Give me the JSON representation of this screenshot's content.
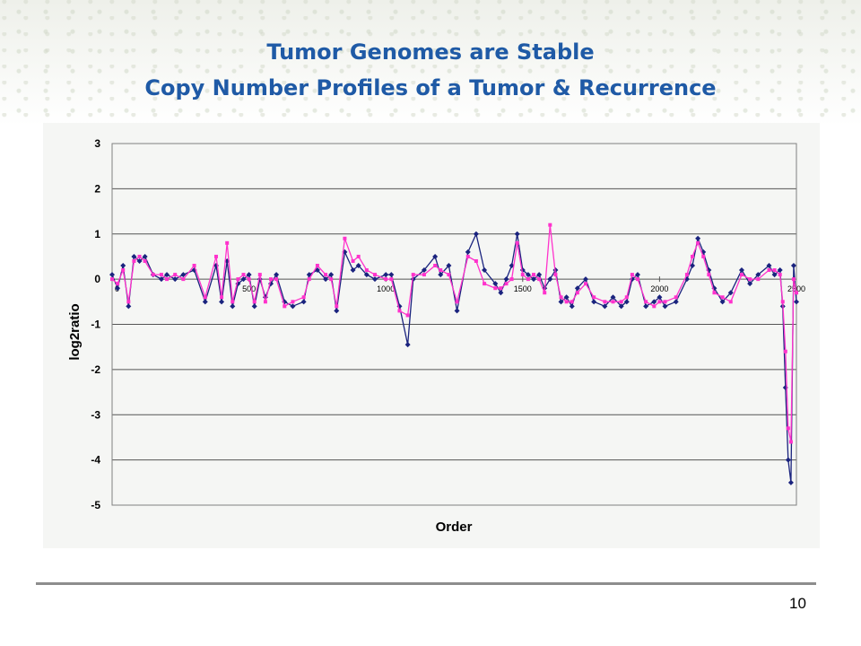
{
  "slide": {
    "title_line1": "Tumor Genomes are Stable",
    "title_line2": "Copy Number Profiles of a Tumor & Recurrence",
    "page_number": "10"
  },
  "colors": {
    "title": "#1f5aa6",
    "series_tumor": "#1a237e",
    "series_recurrence": "#ff33cc"
  },
  "chart_data": {
    "type": "line",
    "xlabel": "Order",
    "ylabel": "log2ratio",
    "xlim": [
      0,
      2500
    ],
    "ylim": [
      -5,
      3
    ],
    "yticks": [
      "3",
      "2",
      "1",
      "0",
      "-1",
      "-2",
      "-3",
      "-4",
      "-5"
    ],
    "xticks": [
      "0",
      "500",
      "1000",
      "1500",
      "2000",
      "2500"
    ],
    "grid": true,
    "legend": "none",
    "series": [
      {
        "color": "#1a237e",
        "marker": "diamond",
        "x": [
          0,
          20,
          40,
          60,
          80,
          100,
          120,
          150,
          180,
          200,
          230,
          260,
          300,
          340,
          380,
          400,
          420,
          440,
          460,
          480,
          500,
          520,
          540,
          560,
          580,
          600,
          630,
          660,
          700,
          720,
          750,
          780,
          800,
          820,
          850,
          880,
          900,
          930,
          960,
          1000,
          1020,
          1050,
          1080,
          1100,
          1140,
          1180,
          1200,
          1230,
          1260,
          1300,
          1330,
          1360,
          1400,
          1420,
          1440,
          1460,
          1480,
          1500,
          1520,
          1540,
          1560,
          1580,
          1600,
          1620,
          1640,
          1660,
          1680,
          1700,
          1730,
          1760,
          1800,
          1830,
          1860,
          1880,
          1900,
          1920,
          1950,
          1980,
          2000,
          2020,
          2060,
          2100,
          2120,
          2140,
          2160,
          2180,
          2200,
          2230,
          2260,
          2300,
          2330,
          2360,
          2400,
          2420,
          2440,
          2450,
          2460,
          2470,
          2480,
          2490,
          2500
        ],
        "values": [
          0.1,
          -0.2,
          0.3,
          -0.6,
          0.5,
          0.4,
          0.5,
          0.1,
          0.0,
          0.1,
          0.0,
          0.1,
          0.2,
          -0.5,
          0.3,
          -0.5,
          0.4,
          -0.6,
          -0.1,
          0.0,
          0.1,
          -0.6,
          0.0,
          -0.4,
          -0.1,
          0.1,
          -0.5,
          -0.6,
          -0.5,
          0.1,
          0.2,
          0.0,
          0.1,
          -0.7,
          0.6,
          0.2,
          0.3,
          0.1,
          0.0,
          0.1,
          0.1,
          -0.6,
          -1.45,
          0.0,
          0.2,
          0.5,
          0.1,
          0.3,
          -0.7,
          0.6,
          1.0,
          0.2,
          -0.1,
          -0.3,
          0.0,
          0.3,
          1.0,
          0.2,
          0.1,
          0.0,
          0.1,
          -0.2,
          0.0,
          0.2,
          -0.5,
          -0.4,
          -0.6,
          -0.2,
          0.0,
          -0.5,
          -0.6,
          -0.4,
          -0.6,
          -0.5,
          0.0,
          0.1,
          -0.6,
          -0.5,
          -0.4,
          -0.6,
          -0.5,
          0.0,
          0.3,
          0.9,
          0.6,
          0.2,
          -0.2,
          -0.5,
          -0.3,
          0.2,
          -0.1,
          0.1,
          0.3,
          0.1,
          0.2,
          -0.6,
          -2.4,
          -4.0,
          -4.5,
          0.3,
          -0.5
        ]
      },
      {
        "color": "#ff33cc",
        "marker": "square",
        "x": [
          0,
          20,
          40,
          60,
          80,
          100,
          120,
          150,
          180,
          200,
          230,
          260,
          300,
          340,
          380,
          400,
          420,
          440,
          460,
          480,
          500,
          520,
          540,
          560,
          580,
          600,
          630,
          660,
          700,
          720,
          750,
          780,
          800,
          820,
          850,
          880,
          900,
          930,
          960,
          1000,
          1020,
          1050,
          1080,
          1100,
          1140,
          1180,
          1200,
          1230,
          1260,
          1300,
          1330,
          1360,
          1400,
          1420,
          1440,
          1460,
          1480,
          1500,
          1520,
          1540,
          1560,
          1580,
          1600,
          1620,
          1640,
          1660,
          1680,
          1700,
          1730,
          1760,
          1800,
          1830,
          1860,
          1880,
          1900,
          1920,
          1950,
          1980,
          2000,
          2020,
          2060,
          2100,
          2120,
          2140,
          2160,
          2180,
          2200,
          2230,
          2260,
          2300,
          2330,
          2360,
          2400,
          2420,
          2440,
          2450,
          2460,
          2470,
          2480,
          2490,
          2500
        ],
        "values": [
          0.0,
          -0.1,
          0.2,
          -0.5,
          0.4,
          0.5,
          0.4,
          0.1,
          0.1,
          0.0,
          0.1,
          0.0,
          0.3,
          -0.4,
          0.5,
          -0.4,
          0.8,
          -0.5,
          0.0,
          0.1,
          0.0,
          -0.5,
          0.1,
          -0.5,
          0.0,
          0.0,
          -0.6,
          -0.5,
          -0.4,
          0.0,
          0.3,
          0.1,
          0.0,
          -0.6,
          0.9,
          0.4,
          0.5,
          0.2,
          0.1,
          0.0,
          0.0,
          -0.7,
          -0.8,
          0.1,
          0.1,
          0.3,
          0.2,
          0.1,
          -0.5,
          0.5,
          0.4,
          -0.1,
          -0.2,
          -0.2,
          -0.1,
          0.0,
          0.8,
          0.1,
          0.0,
          0.1,
          0.0,
          -0.3,
          1.2,
          0.1,
          -0.4,
          -0.5,
          -0.5,
          -0.3,
          -0.1,
          -0.4,
          -0.5,
          -0.5,
          -0.5,
          -0.4,
          0.1,
          0.0,
          -0.5,
          -0.6,
          -0.5,
          -0.5,
          -0.4,
          0.1,
          0.5,
          0.8,
          0.5,
          0.1,
          -0.3,
          -0.4,
          -0.5,
          0.1,
          0.0,
          0.0,
          0.2,
          0.2,
          0.1,
          -0.5,
          -1.6,
          -3.3,
          -3.6,
          0.0,
          -0.3
        ]
      }
    ]
  }
}
